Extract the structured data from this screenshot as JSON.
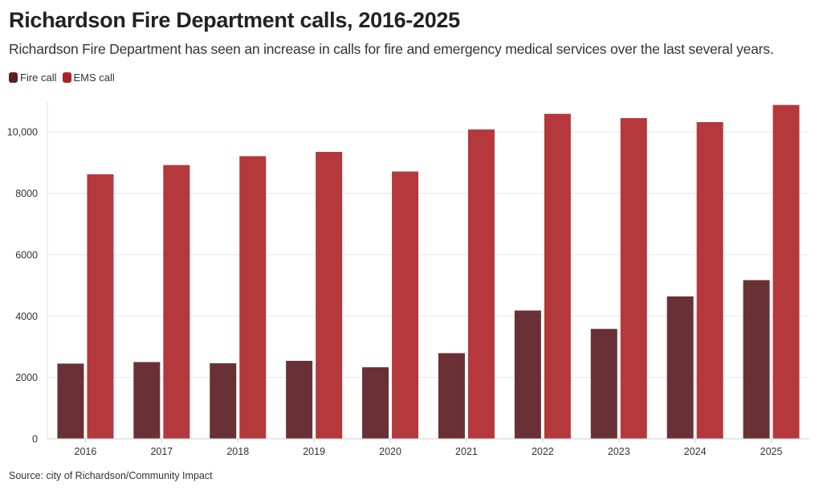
{
  "chart_data": {
    "type": "bar",
    "title": "Richardson Fire Department calls, 2016-2025",
    "subtitle": "Richardson Fire Department has seen an increase in calls for fire and emergency medical services over the last several years.",
    "categories": [
      "2016",
      "2017",
      "2018",
      "2019",
      "2020",
      "2021",
      "2022",
      "2023",
      "2024",
      "2025"
    ],
    "series": [
      {
        "name": "Fire call",
        "color": "#5c2024",
        "values": [
          2450,
          2500,
          2460,
          2540,
          2330,
          2790,
          4180,
          3580,
          4640,
          5170
        ]
      },
      {
        "name": "EMS call",
        "color": "#ac2227",
        "values": [
          8620,
          8920,
          9210,
          9350,
          8710,
          10080,
          10590,
          10450,
          10320,
          10880
        ]
      }
    ],
    "xlabel": "",
    "ylabel": "",
    "ylim": [
      0,
      11000
    ],
    "yticks": [
      0,
      2000,
      4000,
      6000,
      8000,
      10000
    ],
    "ytick_labels": [
      "0",
      "2000",
      "4000",
      "6000",
      "8000",
      "10,000"
    ],
    "grid": true,
    "legend": "top-left",
    "source": "Source: city of Richardson/Community Impact"
  }
}
